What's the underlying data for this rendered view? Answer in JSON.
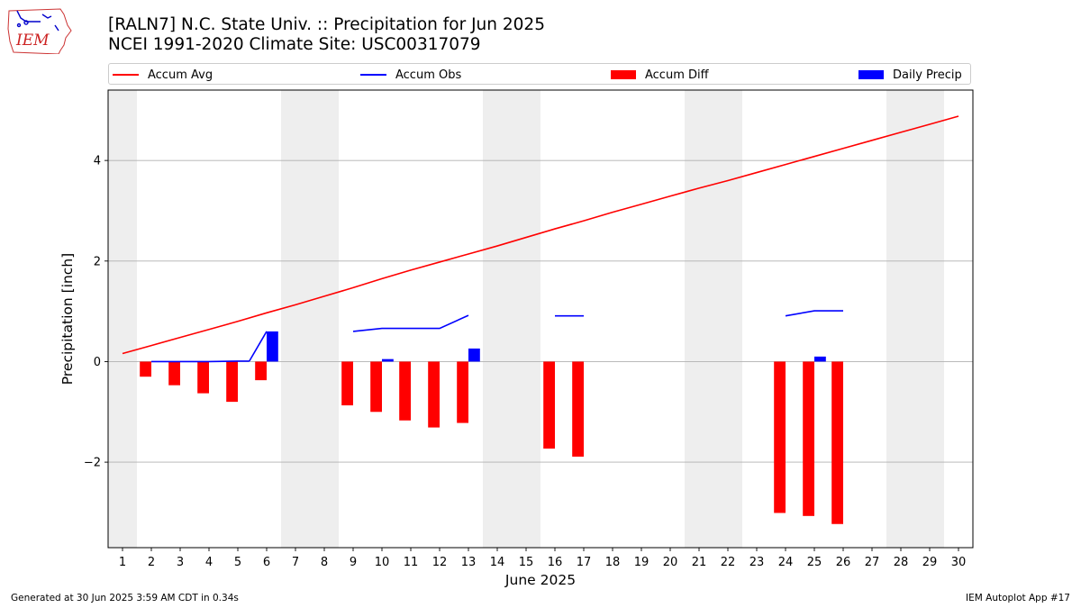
{
  "title": {
    "line1": "[RALN7] N.C. State Univ. :: Precipitation for Jun 2025",
    "line2": "NCEI 1991-2020 Climate Site: USC00317079"
  },
  "logo": {
    "text": "IEM",
    "icon": "iem-iowa-logo-icon"
  },
  "footer": {
    "left": "Generated at 30 Jun 2025 3:59 AM CDT in 0.34s",
    "right": "IEM Autoplot App #17"
  },
  "colors": {
    "accum_avg": "#ff0000",
    "accum_obs": "#0000ff",
    "accum_diff": "#ff0000",
    "daily_precip": "#0000ff",
    "weekend_shade": "#eeeeee",
    "grid": "#b0b0b0"
  },
  "chart_data": {
    "type": "bar",
    "xlabel": "June 2025",
    "ylabel": "Precipitation [inch]",
    "xlim": [
      0.5,
      30.5
    ],
    "ylim": [
      -3.7,
      5.4
    ],
    "yticks": [
      -2,
      0,
      2,
      4
    ],
    "ytick_labels": [
      "−2",
      "0",
      "2",
      "4"
    ],
    "xticks": [
      1,
      2,
      3,
      4,
      5,
      6,
      7,
      8,
      9,
      10,
      11,
      12,
      13,
      14,
      15,
      16,
      17,
      18,
      19,
      20,
      21,
      22,
      23,
      24,
      25,
      26,
      27,
      28,
      29,
      30
    ],
    "grid": "horizontal",
    "legend_position": "top",
    "shaded_days": [
      1,
      7,
      8,
      14,
      15,
      21,
      22,
      28,
      29
    ],
    "series": [
      {
        "name": "Accum Avg",
        "kind": "line",
        "x": [
          1,
          2,
          3,
          4,
          5,
          6,
          7,
          8,
          9,
          10,
          11,
          12,
          13,
          14,
          15,
          16,
          17,
          18,
          19,
          20,
          21,
          22,
          23,
          24,
          25,
          26,
          27,
          28,
          29,
          30
        ],
        "values": [
          0.16,
          0.32,
          0.48,
          0.64,
          0.8,
          0.97,
          1.13,
          1.3,
          1.47,
          1.65,
          1.82,
          1.98,
          2.14,
          2.3,
          2.47,
          2.64,
          2.8,
          2.97,
          3.13,
          3.29,
          3.45,
          3.6,
          3.76,
          3.92,
          4.08,
          4.24,
          4.4,
          4.56,
          4.72,
          4.88
        ]
      },
      {
        "name": "Accum Obs",
        "kind": "line",
        "segments": [
          {
            "x": [
              2,
              3,
              4,
              5,
              5.4
            ],
            "values": [
              0.0,
              0.0,
              0.0,
              0.01,
              0.01
            ]
          },
          {
            "x": [
              5.4,
              6
            ],
            "values": [
              0.01,
              0.6
            ]
          },
          {
            "x": [
              9,
              10,
              11,
              12,
              13
            ],
            "values": [
              0.6,
              0.66,
              0.66,
              0.66,
              0.92
            ]
          },
          {
            "x": [
              16,
              17
            ],
            "values": [
              0.91,
              0.91
            ]
          },
          {
            "x": [
              24,
              25,
              26
            ],
            "values": [
              0.91,
              1.01,
              1.01
            ]
          }
        ]
      },
      {
        "name": "Accum Diff",
        "kind": "bar",
        "x": [
          2,
          3,
          4,
          5,
          6,
          9,
          10,
          11,
          12,
          13,
          16,
          17,
          24,
          25,
          26
        ],
        "values": [
          -0.3,
          -0.47,
          -0.63,
          -0.8,
          -0.37,
          -0.87,
          -1.0,
          -1.17,
          -1.31,
          -1.22,
          -1.73,
          -1.89,
          -3.01,
          -3.07,
          -3.23
        ]
      },
      {
        "name": "Daily Precip",
        "kind": "bar",
        "x": [
          6,
          10,
          13,
          25
        ],
        "values": [
          0.6,
          0.05,
          0.26,
          0.1
        ]
      }
    ]
  }
}
